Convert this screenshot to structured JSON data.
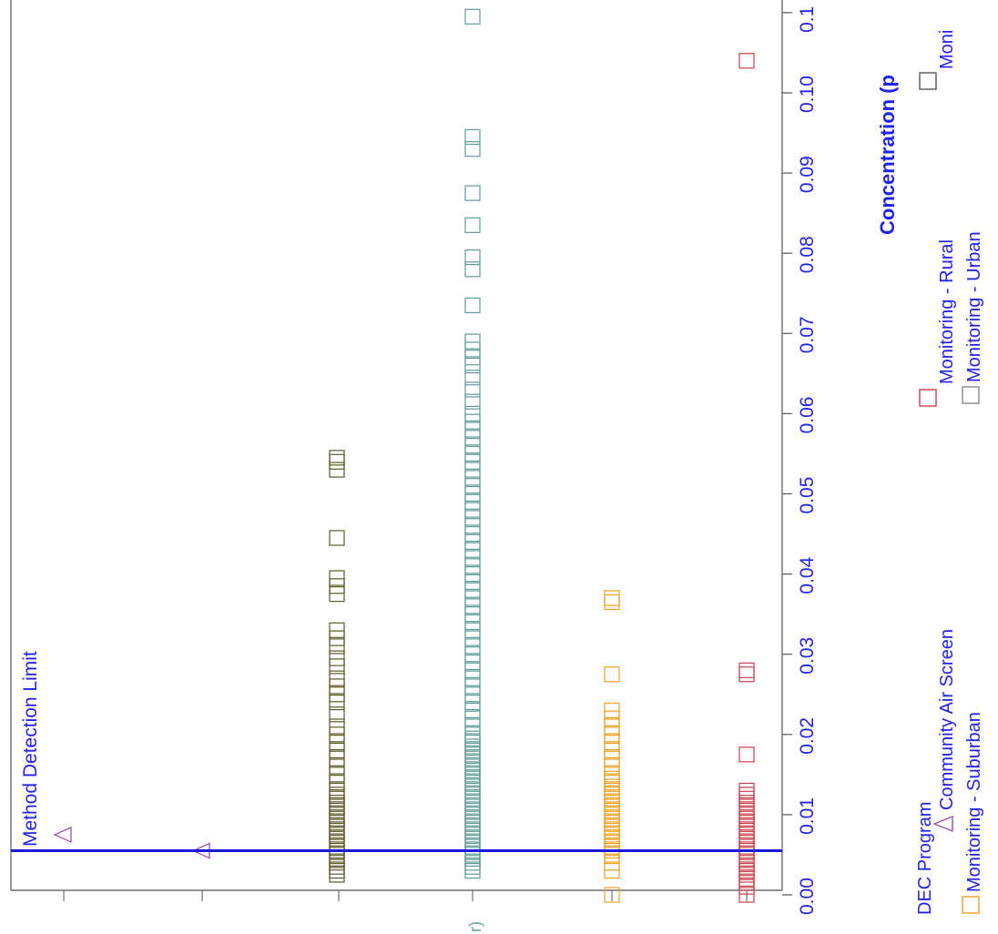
{
  "chart_data": {
    "type": "scatter",
    "value_axis": {
      "label": "Concentration (p",
      "ticks": [
        "0.00",
        "0.01",
        "0.02",
        "0.03",
        "0.04",
        "0.05",
        "0.06",
        "0.07",
        "0.08",
        "0.09",
        "0.10",
        "0.1"
      ],
      "range": [
        0.0,
        0.11
      ]
    },
    "category_axis_partial_label": "r)",
    "reference_line": {
      "label": "Method Detection Limit",
      "value": 0.0055,
      "color": "#1a1adb"
    },
    "legend": {
      "title": "DEC Program",
      "entries": [
        "Community Air Screen",
        "Monitoring - Rural",
        "Moni",
        "Monitoring - Suburban",
        "Monitoring - Urban"
      ]
    },
    "series": [
      {
        "name": "Community Air Screen",
        "marker": "triangle",
        "color": "#9b4fb0",
        "values": [
          0.0075,
          0.0055
        ]
      },
      {
        "name": "Monitoring - ",
        "marker": "square",
        "color": "#5a5a2a",
        "values": [
          0.0025,
          0.003,
          0.0035,
          0.004,
          0.0045,
          0.005,
          0.0055,
          0.006,
          0.0065,
          0.007,
          0.0075,
          0.008,
          0.0085,
          0.009,
          0.0095,
          0.01,
          0.0105,
          0.011,
          0.0115,
          0.012,
          0.0125,
          0.013,
          0.014,
          0.015,
          0.016,
          0.017,
          0.018,
          0.019,
          0.02,
          0.021,
          0.0225,
          0.024,
          0.025,
          0.026,
          0.027,
          0.0285,
          0.0295,
          0.031,
          0.032,
          0.033,
          0.0375,
          0.0385,
          0.0395,
          0.0445,
          0.053,
          0.054,
          0.0545
        ]
      },
      {
        "name": "Monitoring - Urban",
        "marker": "square",
        "color": "#5f9a98",
        "values": [
          0.003,
          0.0035,
          0.004,
          0.0045,
          0.005,
          0.0055,
          0.006,
          0.0065,
          0.007,
          0.0075,
          0.008,
          0.0085,
          0.009,
          0.0095,
          0.01,
          0.0105,
          0.011,
          0.0115,
          0.012,
          0.0125,
          0.013,
          0.0135,
          0.014,
          0.0145,
          0.015,
          0.0155,
          0.016,
          0.0165,
          0.017,
          0.0175,
          0.018,
          0.0185,
          0.019,
          0.0195,
          0.02,
          0.021,
          0.022,
          0.023,
          0.024,
          0.025,
          0.026,
          0.027,
          0.028,
          0.029,
          0.03,
          0.031,
          0.032,
          0.033,
          0.034,
          0.035,
          0.036,
          0.037,
          0.038,
          0.039,
          0.04,
          0.041,
          0.042,
          0.043,
          0.044,
          0.045,
          0.046,
          0.047,
          0.048,
          0.049,
          0.05,
          0.051,
          0.052,
          0.053,
          0.054,
          0.055,
          0.056,
          0.057,
          0.058,
          0.059,
          0.06,
          0.0615,
          0.063,
          0.0645,
          0.066,
          0.067,
          0.068,
          0.069,
          0.0735,
          0.078,
          0.0795,
          0.0835,
          0.0875,
          0.093,
          0.0945,
          0.1095
        ]
      },
      {
        "name": "Monitoring - Suburban",
        "marker": "square",
        "color": "#f0a020",
        "values": [
          0.0,
          0.003,
          0.004,
          0.005,
          0.0055,
          0.006,
          0.0065,
          0.007,
          0.0075,
          0.008,
          0.0085,
          0.009,
          0.0095,
          0.01,
          0.0105,
          0.011,
          0.0115,
          0.012,
          0.0125,
          0.013,
          0.0135,
          0.014,
          0.0145,
          0.015,
          0.016,
          0.017,
          0.018,
          0.019,
          0.02,
          0.021,
          0.022,
          0.023,
          0.0275,
          0.0365,
          0.037
        ]
      },
      {
        "name": "Monitoring - Rural",
        "marker": "square",
        "color": "#c8404a",
        "values": [
          0.0,
          0.001,
          0.0015,
          0.002,
          0.0025,
          0.003,
          0.0035,
          0.004,
          0.0045,
          0.005,
          0.0055,
          0.006,
          0.0065,
          0.007,
          0.0075,
          0.008,
          0.0085,
          0.009,
          0.0095,
          0.01,
          0.0105,
          0.011,
          0.0115,
          0.012,
          0.0125,
          0.013,
          0.0175,
          0.0275,
          0.028,
          0.104
        ]
      }
    ],
    "grid": false,
    "orientation": "rotated-90"
  },
  "colors": {
    "axis_text": "#2222ee",
    "axis_line": "#333333"
  }
}
